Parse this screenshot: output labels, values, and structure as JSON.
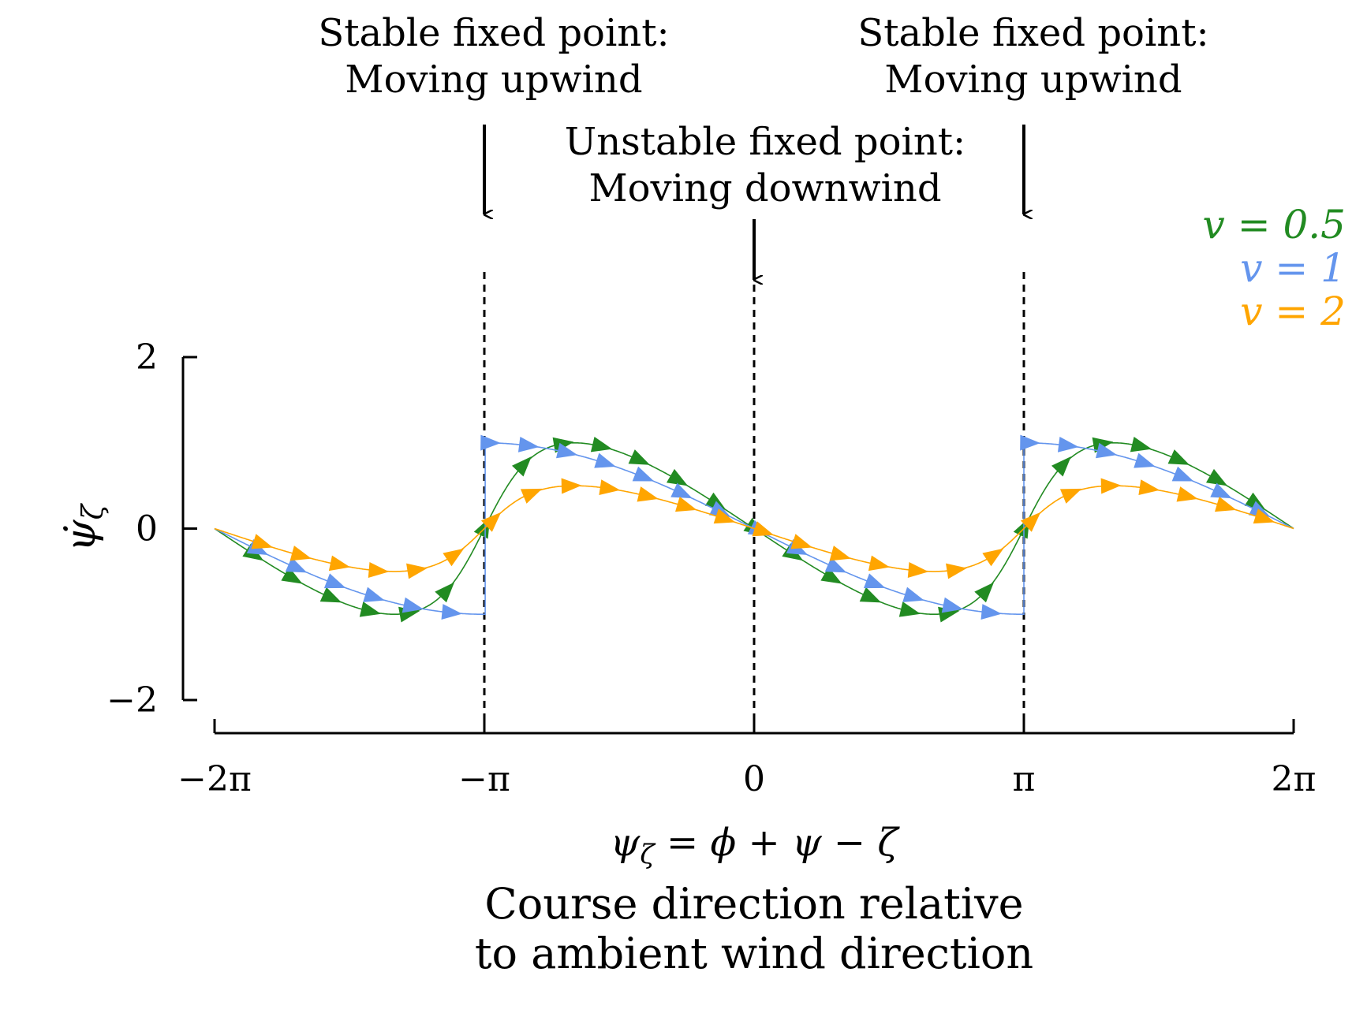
{
  "chart_data": {
    "type": "line",
    "xlabel": "ψ_ζ = ϕ + ψ − ζ",
    "ylabel": "ψ̇_ζ",
    "caption_lines": [
      "Course direction relative",
      "to ambient wind direction"
    ],
    "xlim": [
      -6.2832,
      6.2832
    ],
    "ylim": [
      -2,
      2
    ],
    "xticks": [
      {
        "value": -6.2832,
        "label": "−2π"
      },
      {
        "value": -3.1416,
        "label": "−π"
      },
      {
        "value": 0,
        "label": "0"
      },
      {
        "value": 3.1416,
        "label": "π"
      },
      {
        "value": 6.2832,
        "label": "2π"
      }
    ],
    "yticks": [
      {
        "value": -2,
        "label": "−2"
      },
      {
        "value": 0,
        "label": "0"
      },
      {
        "value": 2,
        "label": "2"
      }
    ],
    "fixed_points": [
      {
        "x": -3.1416,
        "lines": [
          "Stable fixed point:",
          "Moving upwind"
        ]
      },
      {
        "x": 0,
        "lines": [
          "Unstable fixed point:",
          "Moving downwind"
        ]
      },
      {
        "x": 3.1416,
        "lines": [
          "Stable fixed point:",
          "Moving upwind"
        ]
      }
    ],
    "series": [
      {
        "name": "v = 0.5",
        "v": 0.5,
        "color": "#228b22"
      },
      {
        "name": "v = 1",
        "v": 1,
        "color": "#6495ed"
      },
      {
        "name": "v = 2",
        "v": 2,
        "color": "#ffa500"
      }
    ],
    "grid": false,
    "legend_position": "top-right"
  }
}
